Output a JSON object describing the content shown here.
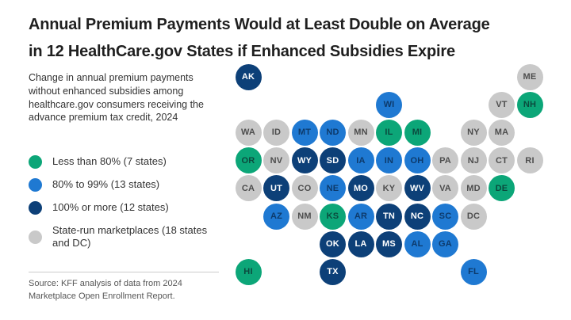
{
  "title": {
    "line1": "Annual Premium Payments Would at Least Double on Average",
    "line2": "in 12 HealthCare.gov States if Enhanced Subsidies Expire"
  },
  "subtitle": "Change in annual premium payments without enhanced subsidies among healthcare.gov consumers receiving the advance premium tax credit, 2024",
  "source": "Source: KFF analysis of data from 2024 Marketplace Open Enrollment Report.",
  "colors": {
    "background": "#ffffff",
    "title_text": "#1f1f1f",
    "body_text": "#333333",
    "source_text": "#575757",
    "divider": "#cccccc"
  },
  "legend": {
    "items": [
      {
        "key": "lt80",
        "label": "Less than 80% (7 states)",
        "color": "#0ca678",
        "text_color": "#0b4a3e"
      },
      {
        "key": "p80to99",
        "label": "80% to 99% (13 states)",
        "color": "#1f79d2",
        "text_color": "#0d3a6b"
      },
      {
        "key": "gte100",
        "label": "100% or more (12 states)",
        "color": "#0d4078",
        "text_color": "#ffffff"
      },
      {
        "key": "staterun",
        "label": "State-run marketplaces (18 states and DC)",
        "color": "#c9c9c9",
        "text_color": "#4d4d4d"
      }
    ]
  },
  "map": {
    "states": [
      {
        "code": "AK",
        "row": 0,
        "col": 0,
        "cat": "gte100"
      },
      {
        "code": "ME",
        "row": 0,
        "col": 10,
        "cat": "staterun"
      },
      {
        "code": "WI",
        "row": 1,
        "col": 5,
        "cat": "p80to99"
      },
      {
        "code": "VT",
        "row": 1,
        "col": 9,
        "cat": "staterun"
      },
      {
        "code": "NH",
        "row": 1,
        "col": 10,
        "cat": "lt80"
      },
      {
        "code": "WA",
        "row": 2,
        "col": 0,
        "cat": "staterun"
      },
      {
        "code": "ID",
        "row": 2,
        "col": 1,
        "cat": "staterun"
      },
      {
        "code": "MT",
        "row": 2,
        "col": 2,
        "cat": "p80to99"
      },
      {
        "code": "ND",
        "row": 2,
        "col": 3,
        "cat": "p80to99"
      },
      {
        "code": "MN",
        "row": 2,
        "col": 4,
        "cat": "staterun"
      },
      {
        "code": "IL",
        "row": 2,
        "col": 5,
        "cat": "lt80"
      },
      {
        "code": "MI",
        "row": 2,
        "col": 6,
        "cat": "lt80"
      },
      {
        "code": "NY",
        "row": 2,
        "col": 8,
        "cat": "staterun"
      },
      {
        "code": "MA",
        "row": 2,
        "col": 9,
        "cat": "staterun"
      },
      {
        "code": "OR",
        "row": 3,
        "col": 0,
        "cat": "lt80"
      },
      {
        "code": "NV",
        "row": 3,
        "col": 1,
        "cat": "staterun"
      },
      {
        "code": "WY",
        "row": 3,
        "col": 2,
        "cat": "gte100"
      },
      {
        "code": "SD",
        "row": 3,
        "col": 3,
        "cat": "gte100"
      },
      {
        "code": "IA",
        "row": 3,
        "col": 4,
        "cat": "p80to99"
      },
      {
        "code": "IN",
        "row": 3,
        "col": 5,
        "cat": "p80to99"
      },
      {
        "code": "OH",
        "row": 3,
        "col": 6,
        "cat": "p80to99"
      },
      {
        "code": "PA",
        "row": 3,
        "col": 7,
        "cat": "staterun"
      },
      {
        "code": "NJ",
        "row": 3,
        "col": 8,
        "cat": "staterun"
      },
      {
        "code": "CT",
        "row": 3,
        "col": 9,
        "cat": "staterun"
      },
      {
        "code": "RI",
        "row": 3,
        "col": 10,
        "cat": "staterun"
      },
      {
        "code": "CA",
        "row": 4,
        "col": 0,
        "cat": "staterun"
      },
      {
        "code": "UT",
        "row": 4,
        "col": 1,
        "cat": "gte100"
      },
      {
        "code": "CO",
        "row": 4,
        "col": 2,
        "cat": "staterun"
      },
      {
        "code": "NE",
        "row": 4,
        "col": 3,
        "cat": "p80to99"
      },
      {
        "code": "MO",
        "row": 4,
        "col": 4,
        "cat": "gte100"
      },
      {
        "code": "KY",
        "row": 4,
        "col": 5,
        "cat": "staterun"
      },
      {
        "code": "WV",
        "row": 4,
        "col": 6,
        "cat": "gte100"
      },
      {
        "code": "VA",
        "row": 4,
        "col": 7,
        "cat": "staterun"
      },
      {
        "code": "MD",
        "row": 4,
        "col": 8,
        "cat": "staterun"
      },
      {
        "code": "DE",
        "row": 4,
        "col": 9,
        "cat": "lt80"
      },
      {
        "code": "AZ",
        "row": 5,
        "col": 1,
        "cat": "p80to99"
      },
      {
        "code": "NM",
        "row": 5,
        "col": 2,
        "cat": "staterun"
      },
      {
        "code": "KS",
        "row": 5,
        "col": 3,
        "cat": "lt80"
      },
      {
        "code": "AR",
        "row": 5,
        "col": 4,
        "cat": "p80to99"
      },
      {
        "code": "TN",
        "row": 5,
        "col": 5,
        "cat": "gte100"
      },
      {
        "code": "NC",
        "row": 5,
        "col": 6,
        "cat": "gte100"
      },
      {
        "code": "SC",
        "row": 5,
        "col": 7,
        "cat": "p80to99"
      },
      {
        "code": "DC",
        "row": 5,
        "col": 8,
        "cat": "staterun"
      },
      {
        "code": "OK",
        "row": 6,
        "col": 3,
        "cat": "gte100"
      },
      {
        "code": "LA",
        "row": 6,
        "col": 4,
        "cat": "gte100"
      },
      {
        "code": "MS",
        "row": 6,
        "col": 5,
        "cat": "gte100"
      },
      {
        "code": "AL",
        "row": 6,
        "col": 6,
        "cat": "p80to99"
      },
      {
        "code": "GA",
        "row": 6,
        "col": 7,
        "cat": "p80to99"
      },
      {
        "code": "HI",
        "row": 7,
        "col": 0,
        "cat": "lt80"
      },
      {
        "code": "TX",
        "row": 7,
        "col": 3,
        "cat": "gte100"
      },
      {
        "code": "FL",
        "row": 7,
        "col": 8,
        "cat": "p80to99"
      }
    ]
  },
  "chart_data": {
    "type": "heatmap",
    "subtype": "state-tile-cartogram",
    "title": "Annual Premium Payments Would at Least Double on Average in 12 HealthCare.gov States if Enhanced Subsidies Expire",
    "subtitle": "Change in annual premium payments without enhanced subsidies among healthcare.gov consumers receiving the advance premium tax credit, 2024",
    "legend_position": "left",
    "categories": [
      "Less than 80%",
      "80% to 99%",
      "100% or more",
      "State-run marketplaces"
    ],
    "series": [
      {
        "name": "Less than 80% (7 states)",
        "color": "#0ca678",
        "states": [
          "OR",
          "IL",
          "MI",
          "KS",
          "DE",
          "NH",
          "HI"
        ]
      },
      {
        "name": "80% to 99% (13 states)",
        "color": "#1f79d2",
        "states": [
          "MT",
          "ND",
          "WI",
          "IA",
          "IN",
          "OH",
          "NE",
          "AZ",
          "AR",
          "SC",
          "AL",
          "GA",
          "FL"
        ]
      },
      {
        "name": "100% or more (12 states)",
        "color": "#0d4078",
        "states": [
          "AK",
          "WY",
          "SD",
          "UT",
          "MO",
          "WV",
          "TN",
          "NC",
          "OK",
          "LA",
          "MS",
          "TX"
        ]
      },
      {
        "name": "State-run marketplaces (18 states and DC)",
        "color": "#c9c9c9",
        "states": [
          "WA",
          "ID",
          "MN",
          "NY",
          "MA",
          "VT",
          "ME",
          "NV",
          "PA",
          "NJ",
          "CT",
          "RI",
          "CA",
          "CO",
          "KY",
          "VA",
          "MD",
          "NM",
          "DC"
        ]
      }
    ],
    "source": "Source: KFF analysis of data from 2024 Marketplace Open Enrollment Report."
  }
}
